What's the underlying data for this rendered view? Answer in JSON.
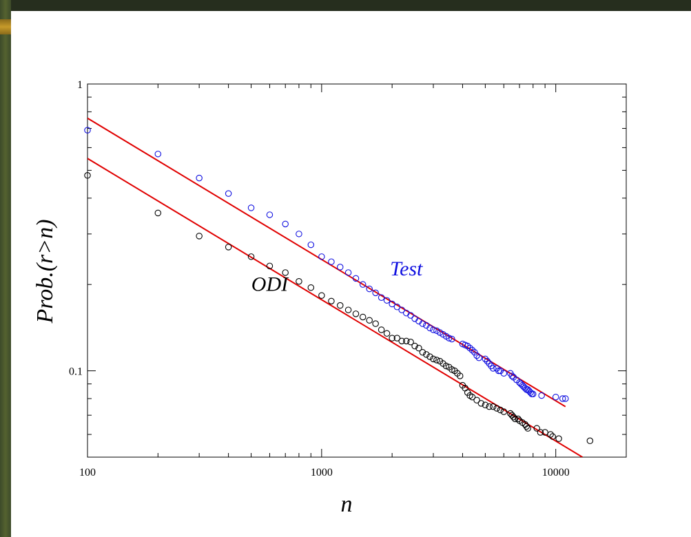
{
  "chart_data": {
    "type": "scatter",
    "x_scale": "log",
    "y_scale": "log",
    "xlim": [
      100,
      20000
    ],
    "ylim": [
      0.05,
      1
    ],
    "xlabel": "n",
    "ylabel": "Prob.(r>n)",
    "x_ticks": [
      {
        "value": 100,
        "label": "100"
      },
      {
        "value": 1000,
        "label": "1000"
      },
      {
        "value": 10000,
        "label": "10000"
      }
    ],
    "y_ticks": [
      {
        "value": 0.1,
        "label": "0.1"
      },
      {
        "value": 1,
        "label": "1"
      }
    ],
    "grid": false,
    "series": [
      {
        "name": "Test",
        "color": "#1010e0",
        "marker": "open-circle",
        "x": [
          100,
          200,
          300,
          400,
          500,
          600,
          700,
          800,
          900,
          1000,
          1100,
          1200,
          1300,
          1400,
          1500,
          1600,
          1700,
          1800,
          1900,
          2000,
          2100,
          2200,
          2300,
          2400,
          2500,
          2600,
          2700,
          2800,
          2900,
          3000,
          3100,
          3200,
          3300,
          3400,
          3500,
          3600,
          4000,
          4100,
          4200,
          4300,
          4400,
          4500,
          4600,
          4700,
          5000,
          5100,
          5200,
          5300,
          5400,
          5600,
          5700,
          5800,
          6000,
          6400,
          6500,
          6600,
          6800,
          7000,
          7100,
          7200,
          7300,
          7400,
          7500,
          7600,
          7700,
          7800,
          7900,
          8000,
          8700,
          10000,
          10700,
          11000
        ],
        "y": [
          0.69,
          0.57,
          0.47,
          0.415,
          0.37,
          0.35,
          0.325,
          0.3,
          0.275,
          0.25,
          0.24,
          0.23,
          0.22,
          0.21,
          0.2,
          0.193,
          0.187,
          0.18,
          0.176,
          0.171,
          0.167,
          0.163,
          0.159,
          0.156,
          0.152,
          0.149,
          0.146,
          0.144,
          0.141,
          0.139,
          0.138,
          0.136,
          0.134,
          0.132,
          0.13,
          0.129,
          0.124,
          0.123,
          0.122,
          0.12,
          0.118,
          0.116,
          0.113,
          0.111,
          0.11,
          0.108,
          0.106,
          0.104,
          0.102,
          0.102,
          0.1,
          0.1,
          0.098,
          0.098,
          0.096,
          0.095,
          0.093,
          0.091,
          0.09,
          0.089,
          0.088,
          0.087,
          0.086,
          0.086,
          0.085,
          0.084,
          0.083,
          0.083,
          0.082,
          0.081,
          0.08,
          0.08
        ]
      },
      {
        "name": "ODI",
        "color": "#000000",
        "marker": "open-circle",
        "x": [
          100,
          200,
          300,
          400,
          500,
          600,
          700,
          800,
          900,
          1000,
          1100,
          1200,
          1300,
          1400,
          1500,
          1600,
          1700,
          1800,
          1900,
          2000,
          2100,
          2200,
          2300,
          2400,
          2500,
          2600,
          2700,
          2800,
          2900,
          3000,
          3100,
          3200,
          3300,
          3400,
          3500,
          3600,
          3700,
          3800,
          3900,
          4000,
          4100,
          4200,
          4300,
          4400,
          4600,
          4800,
          5000,
          5200,
          5400,
          5600,
          5800,
          6000,
          6400,
          6500,
          6600,
          6700,
          6900,
          7000,
          7200,
          7400,
          7500,
          7600,
          8300,
          8600,
          9000,
          9500,
          9700,
          10300,
          14000
        ],
        "y": [
          0.48,
          0.355,
          0.295,
          0.27,
          0.25,
          0.232,
          0.22,
          0.205,
          0.195,
          0.183,
          0.175,
          0.169,
          0.163,
          0.158,
          0.154,
          0.15,
          0.146,
          0.139,
          0.135,
          0.13,
          0.13,
          0.127,
          0.127,
          0.126,
          0.122,
          0.12,
          0.116,
          0.114,
          0.112,
          0.11,
          0.109,
          0.108,
          0.106,
          0.104,
          0.103,
          0.101,
          0.1,
          0.098,
          0.096,
          0.089,
          0.087,
          0.084,
          0.082,
          0.081,
          0.079,
          0.077,
          0.076,
          0.075,
          0.075,
          0.074,
          0.073,
          0.072,
          0.071,
          0.07,
          0.069,
          0.068,
          0.068,
          0.067,
          0.066,
          0.065,
          0.064,
          0.063,
          0.063,
          0.061,
          0.061,
          0.06,
          0.059,
          0.058,
          0.057
        ]
      }
    ],
    "fit_lines": [
      {
        "series": "Test",
        "color": "#e00000",
        "x": [
          100,
          11000
        ],
        "y": [
          0.76,
          0.075
        ]
      },
      {
        "series": "ODI",
        "color": "#e00000",
        "x": [
          100,
          13000
        ],
        "y": [
          0.55,
          0.05
        ]
      }
    ],
    "annotations": [
      {
        "text": "Test",
        "color": "#1010e0",
        "x": 2300,
        "y": 0.215
      },
      {
        "text": "ODI",
        "color": "#000000",
        "x": 600,
        "y": 0.19
      }
    ]
  }
}
